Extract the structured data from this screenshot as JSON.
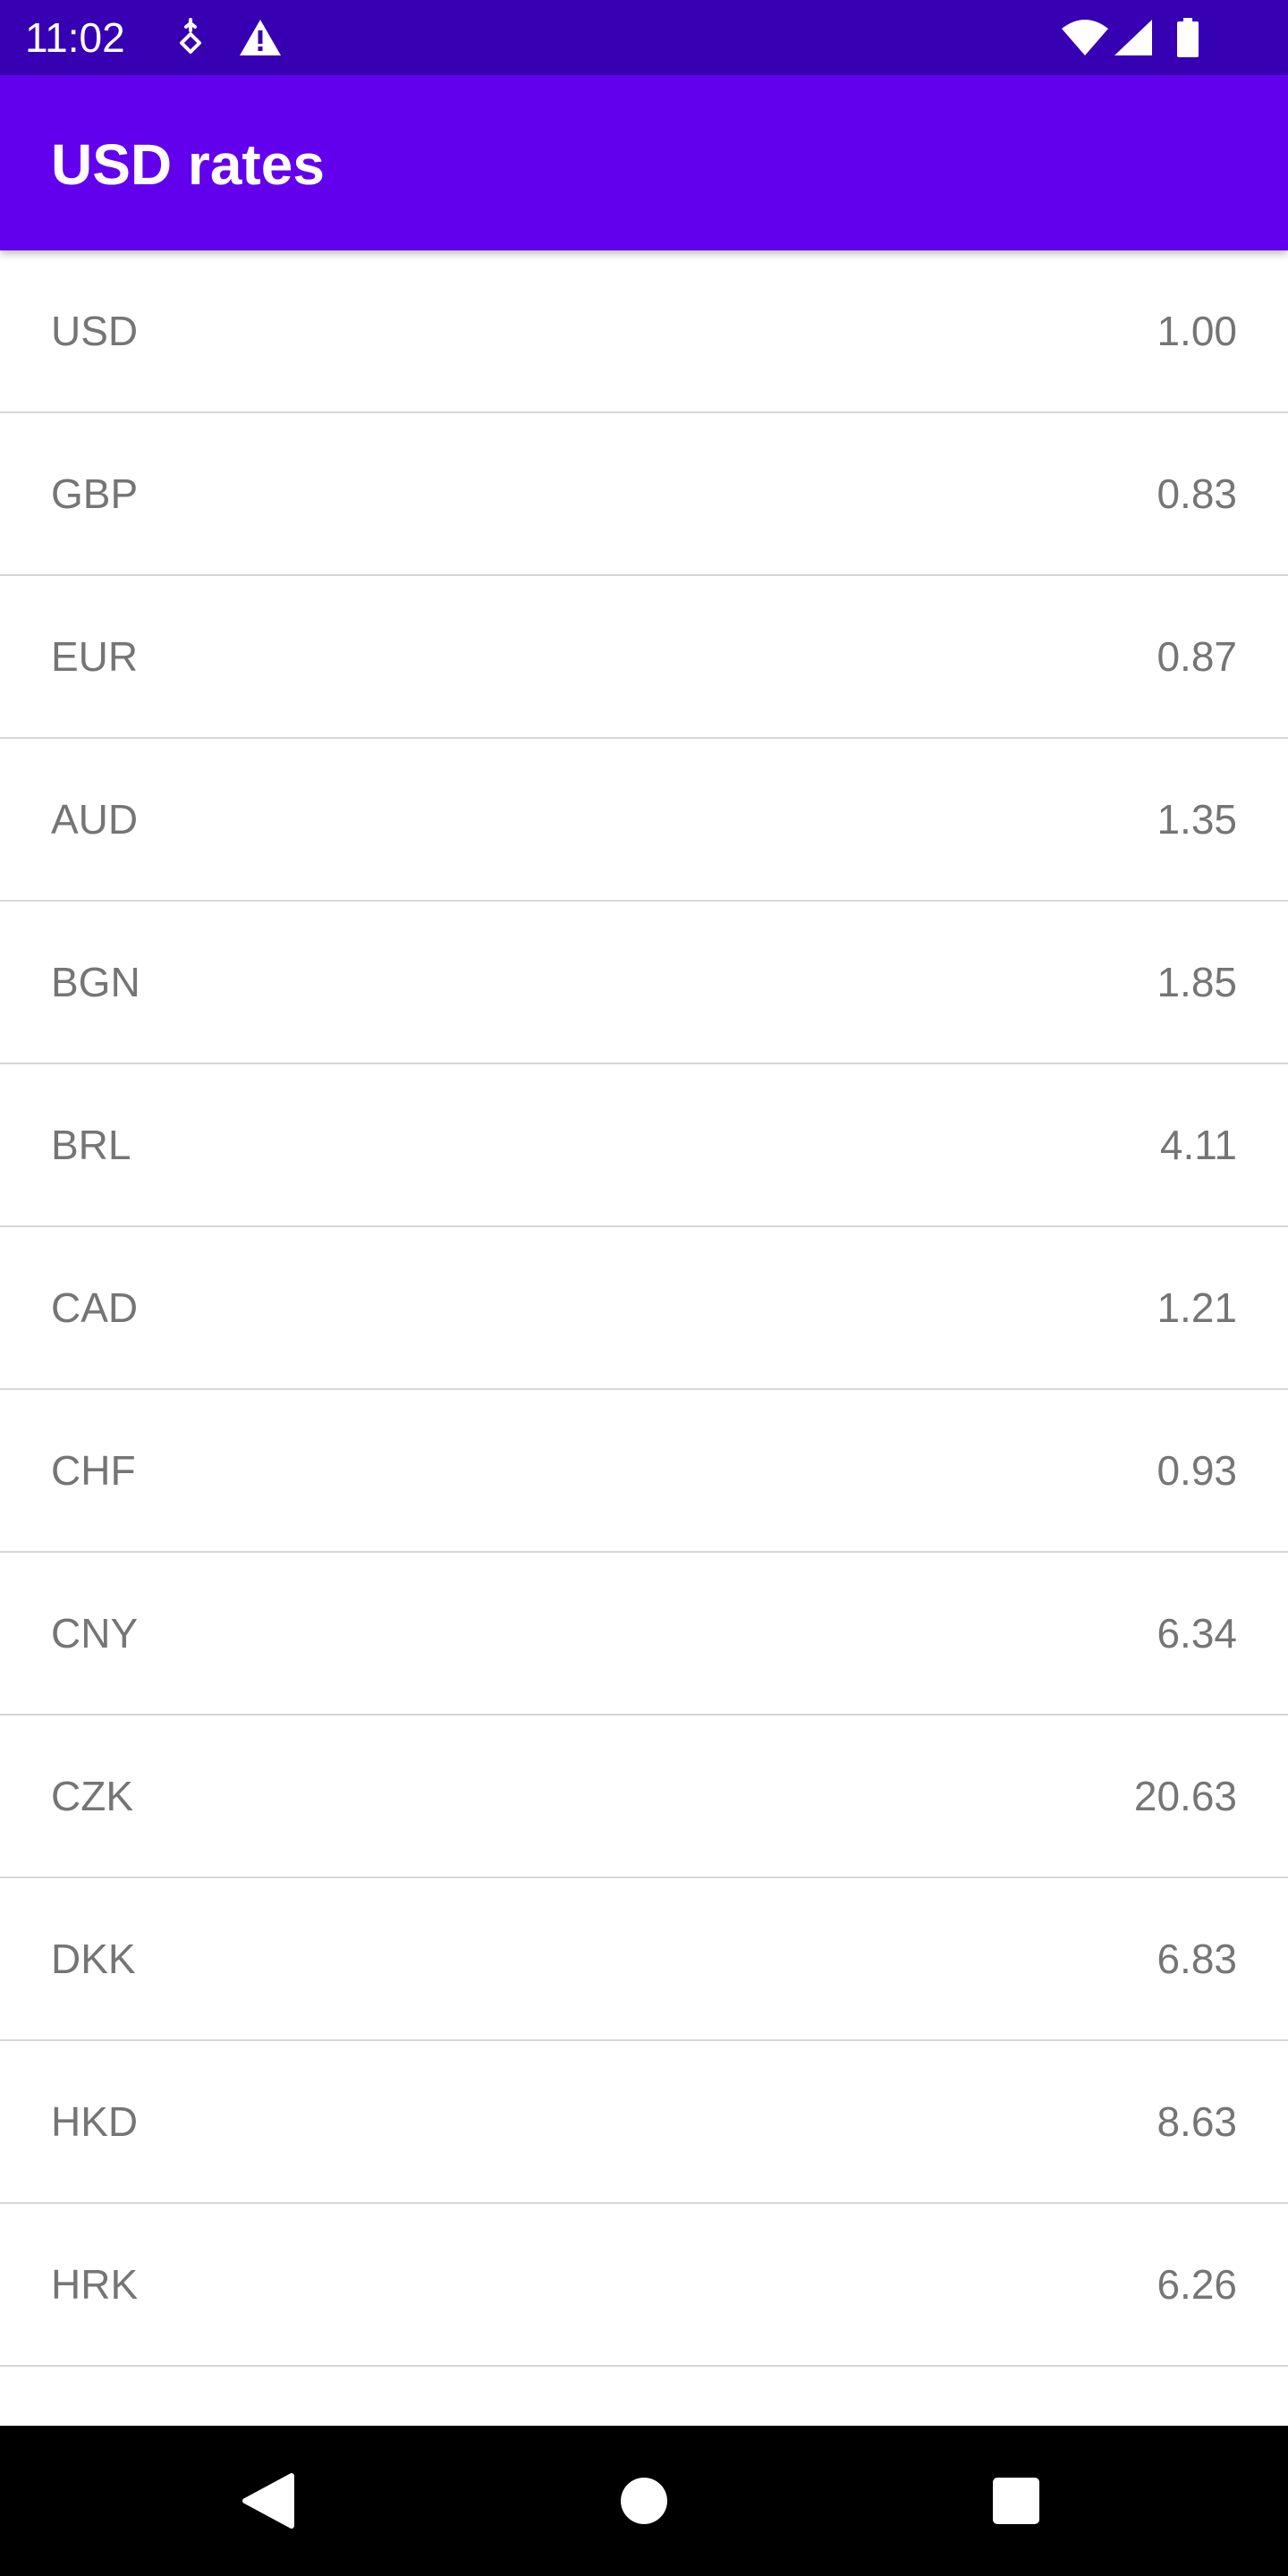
{
  "status_bar": {
    "time": "11:02",
    "left_icons": [
      "vpn-key-icon",
      "warning-icon"
    ],
    "right_icons": [
      "wifi-icon",
      "cell-signal-icon",
      "battery-icon"
    ],
    "background_color": "#3700b3"
  },
  "app_bar": {
    "title": "USD rates",
    "background_color": "#6200ee"
  },
  "rates": [
    {
      "code": "USD",
      "value": "1.00"
    },
    {
      "code": "GBP",
      "value": "0.83"
    },
    {
      "code": "EUR",
      "value": "0.87"
    },
    {
      "code": "AUD",
      "value": "1.35"
    },
    {
      "code": "BGN",
      "value": "1.85"
    },
    {
      "code": "BRL",
      "value": "4.11"
    },
    {
      "code": "CAD",
      "value": "1.21"
    },
    {
      "code": "CHF",
      "value": "0.93"
    },
    {
      "code": "CNY",
      "value": "6.34"
    },
    {
      "code": "CZK",
      "value": "20.63"
    },
    {
      "code": "DKK",
      "value": "6.83"
    },
    {
      "code": "HKD",
      "value": "8.63"
    },
    {
      "code": "HRK",
      "value": "6.26"
    }
  ],
  "nav_bar": {
    "buttons": [
      "back-icon",
      "home-icon",
      "recents-icon"
    ]
  }
}
